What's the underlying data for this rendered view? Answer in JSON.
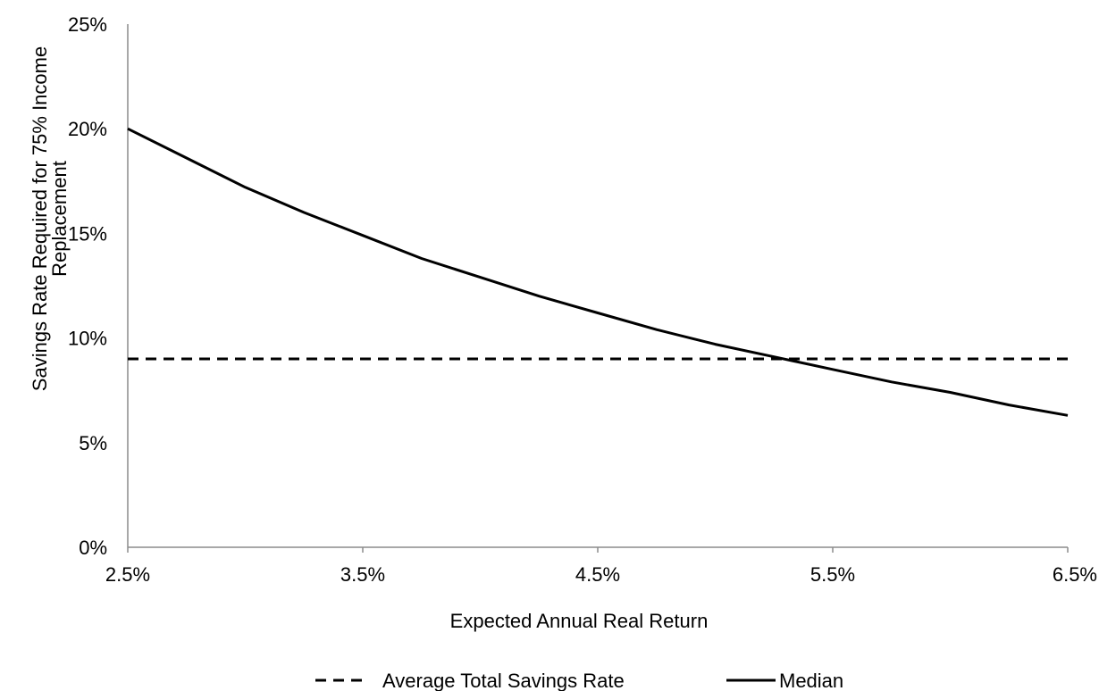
{
  "chart_data": {
    "type": "line",
    "xlabel": "Expected Annual Real Return",
    "ylabel_lines": [
      "Savings Rate Required for 75% Income",
      "Replacement"
    ],
    "xlim": [
      2.5,
      6.5
    ],
    "ylim": [
      0,
      25
    ],
    "x_ticks": [
      2.5,
      3.5,
      4.5,
      5.5,
      6.5
    ],
    "x_tick_labels": [
      "2.5%",
      "3.5%",
      "4.5%",
      "5.5%",
      "6.5%"
    ],
    "y_ticks": [
      0,
      5,
      10,
      15,
      20,
      25
    ],
    "y_tick_labels": [
      "0%",
      "5%",
      "10%",
      "15%",
      "20%",
      "25%"
    ],
    "grid": false,
    "legend_position": "bottom",
    "series": [
      {
        "name": "Average Total Savings Rate",
        "style": "dashed",
        "color": "#000000",
        "x": [
          2.5,
          6.5
        ],
        "y": [
          9.0,
          9.0
        ]
      },
      {
        "name": "Median",
        "style": "solid",
        "color": "#000000",
        "x": [
          2.5,
          2.75,
          3.0,
          3.25,
          3.5,
          3.75,
          4.0,
          4.25,
          4.5,
          4.75,
          5.0,
          5.25,
          5.5,
          5.75,
          6.0,
          6.25,
          6.5
        ],
        "y": [
          20.0,
          18.6,
          17.2,
          16.0,
          14.9,
          13.8,
          12.9,
          12.0,
          11.2,
          10.4,
          9.7,
          9.1,
          8.5,
          7.9,
          7.4,
          6.8,
          6.3
        ]
      }
    ]
  }
}
